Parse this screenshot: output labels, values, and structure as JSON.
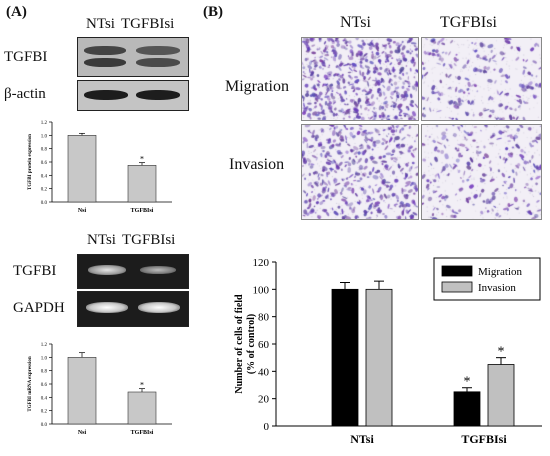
{
  "panel_a": {
    "label": "(A)",
    "protein_lanes": [
      "NTsi",
      "TGFBIsi"
    ],
    "protein_rows": [
      "TGFBI",
      "β-actin"
    ],
    "rna_lanes": [
      "NTsi",
      "TGFBIsi"
    ],
    "rna_rows": [
      "TGFBI",
      "GAPDH"
    ]
  },
  "panel_b": {
    "label": "(B)",
    "columns": [
      "NTsi",
      "TGFBIsi"
    ],
    "rows": [
      "Migration",
      "Invasion"
    ]
  },
  "colors": {
    "migration_bar": "#000000",
    "invasion_bar": "#c0c0c0",
    "small_bar": "#c8c8c8",
    "stain": "#6a4fa8"
  },
  "chart_data": [
    {
      "id": "protein-expression",
      "type": "bar",
      "categories": [
        "Nsi",
        "TGFBIsi"
      ],
      "values": [
        1.0,
        0.55
      ],
      "errors": [
        0.03,
        0.04
      ],
      "ylabel": "TGFBI protein expression",
      "ylim": [
        0,
        1.2
      ],
      "yticks": [
        "0.0",
        "0.2",
        "0.4",
        "0.6",
        "0.8",
        "1.0",
        "1.2"
      ],
      "annotations": [
        "",
        "*"
      ]
    },
    {
      "id": "mrna-expression",
      "type": "bar",
      "categories": [
        "Nsi",
        "TGFBIsi"
      ],
      "values": [
        1.0,
        0.48
      ],
      "errors": [
        0.07,
        0.05
      ],
      "ylabel": "TGFBI mRNA expression",
      "ylim": [
        0,
        1.2
      ],
      "yticks": [
        "0.0",
        "0.2",
        "0.4",
        "0.6",
        "0.8",
        "1.0",
        "1.2"
      ],
      "annotations": [
        "",
        "*"
      ]
    },
    {
      "id": "migration-invasion",
      "type": "bar",
      "categories": [
        "NTsi",
        "TGFBIsi"
      ],
      "series": [
        {
          "name": "Migration",
          "values": [
            100,
            25
          ],
          "errors": [
            5,
            3
          ],
          "annotations": [
            "",
            "*"
          ]
        },
        {
          "name": "Invasion",
          "values": [
            100,
            45
          ],
          "errors": [
            6,
            5
          ],
          "annotations": [
            "",
            "*"
          ]
        }
      ],
      "ylabel_lines": [
        "Number of cells of field",
        "(% of control)"
      ],
      "ylim": [
        0,
        120
      ],
      "yticks": [
        "0",
        "20",
        "40",
        "60",
        "80",
        "100",
        "120"
      ],
      "legend": "top-right"
    }
  ]
}
